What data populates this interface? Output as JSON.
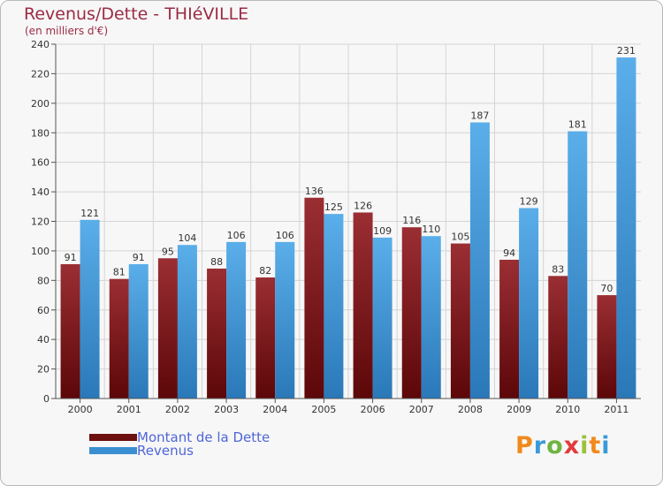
{
  "title": "Revenus/Dette - THIéVILLE",
  "subtitle": "(en milliers d'€)",
  "logo_text": "Proxiti",
  "logo_colors": [
    "#f08a1c",
    "#3a9ad9",
    "#6fb43f",
    "#e23b3b",
    "#9bc23a",
    "#f08a1c",
    "#3a9ad9"
  ],
  "colors": {
    "dette": "#7a1418",
    "revenus": "#3b8fd0",
    "title": "#9b2b45",
    "legend_text": "#4f66d8",
    "axis": "#555555",
    "grid": "#d4d4d4"
  },
  "legend": [
    {
      "label": "Montant de la Dette",
      "color": "#6e1010"
    },
    {
      "label": "Revenus",
      "color": "#3b8fd0"
    }
  ],
  "chart_data": {
    "type": "bar",
    "title": "Revenus/Dette - THIéVILLE",
    "subtitle": "(en milliers d'€)",
    "xlabel": "",
    "ylabel": "",
    "ylim": [
      0,
      240
    ],
    "yticks": [
      0,
      20,
      40,
      60,
      80,
      100,
      120,
      140,
      160,
      180,
      200,
      220,
      240
    ],
    "grid": true,
    "legend_position": "bottom-left",
    "categories": [
      "2000",
      "2001",
      "2002",
      "2003",
      "2004",
      "2005",
      "2006",
      "2007",
      "2008",
      "2009",
      "2010",
      "2011"
    ],
    "series": [
      {
        "name": "Montant de la Dette",
        "values": [
          91,
          81,
          95,
          88,
          82,
          136,
          126,
          116,
          105,
          94,
          83,
          70
        ]
      },
      {
        "name": "Revenus",
        "values": [
          121,
          91,
          104,
          106,
          106,
          125,
          109,
          110,
          187,
          129,
          181,
          231
        ]
      }
    ]
  }
}
